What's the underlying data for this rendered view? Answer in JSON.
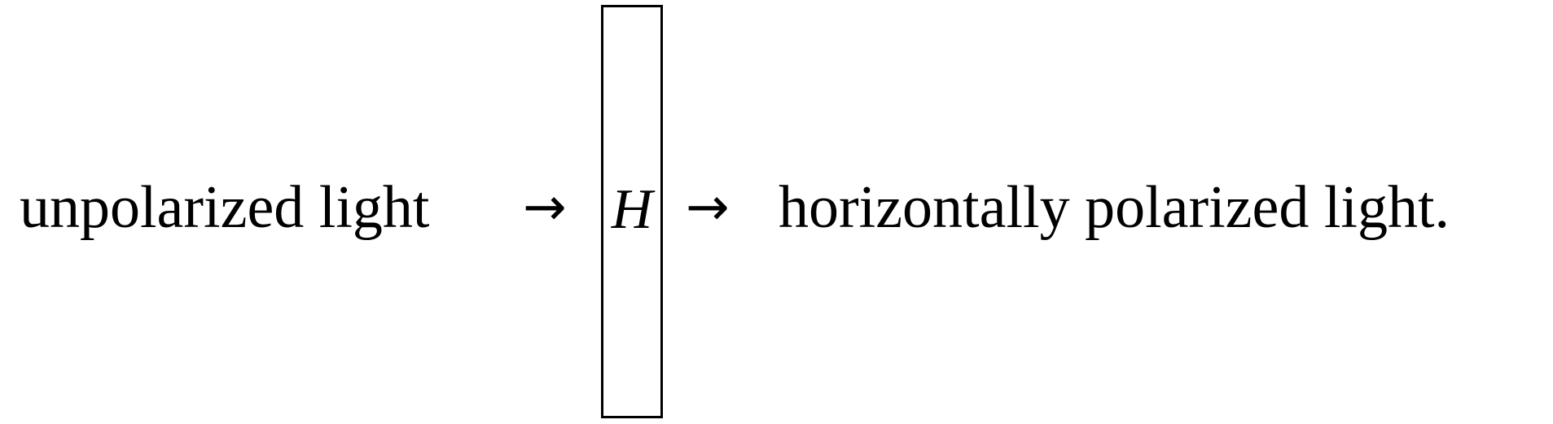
{
  "diagram": {
    "input_label": "unpolarized light",
    "arrow_in": "→",
    "filter_symbol": "H",
    "arrow_out": "→",
    "output_label": "horizontally polarized light."
  }
}
